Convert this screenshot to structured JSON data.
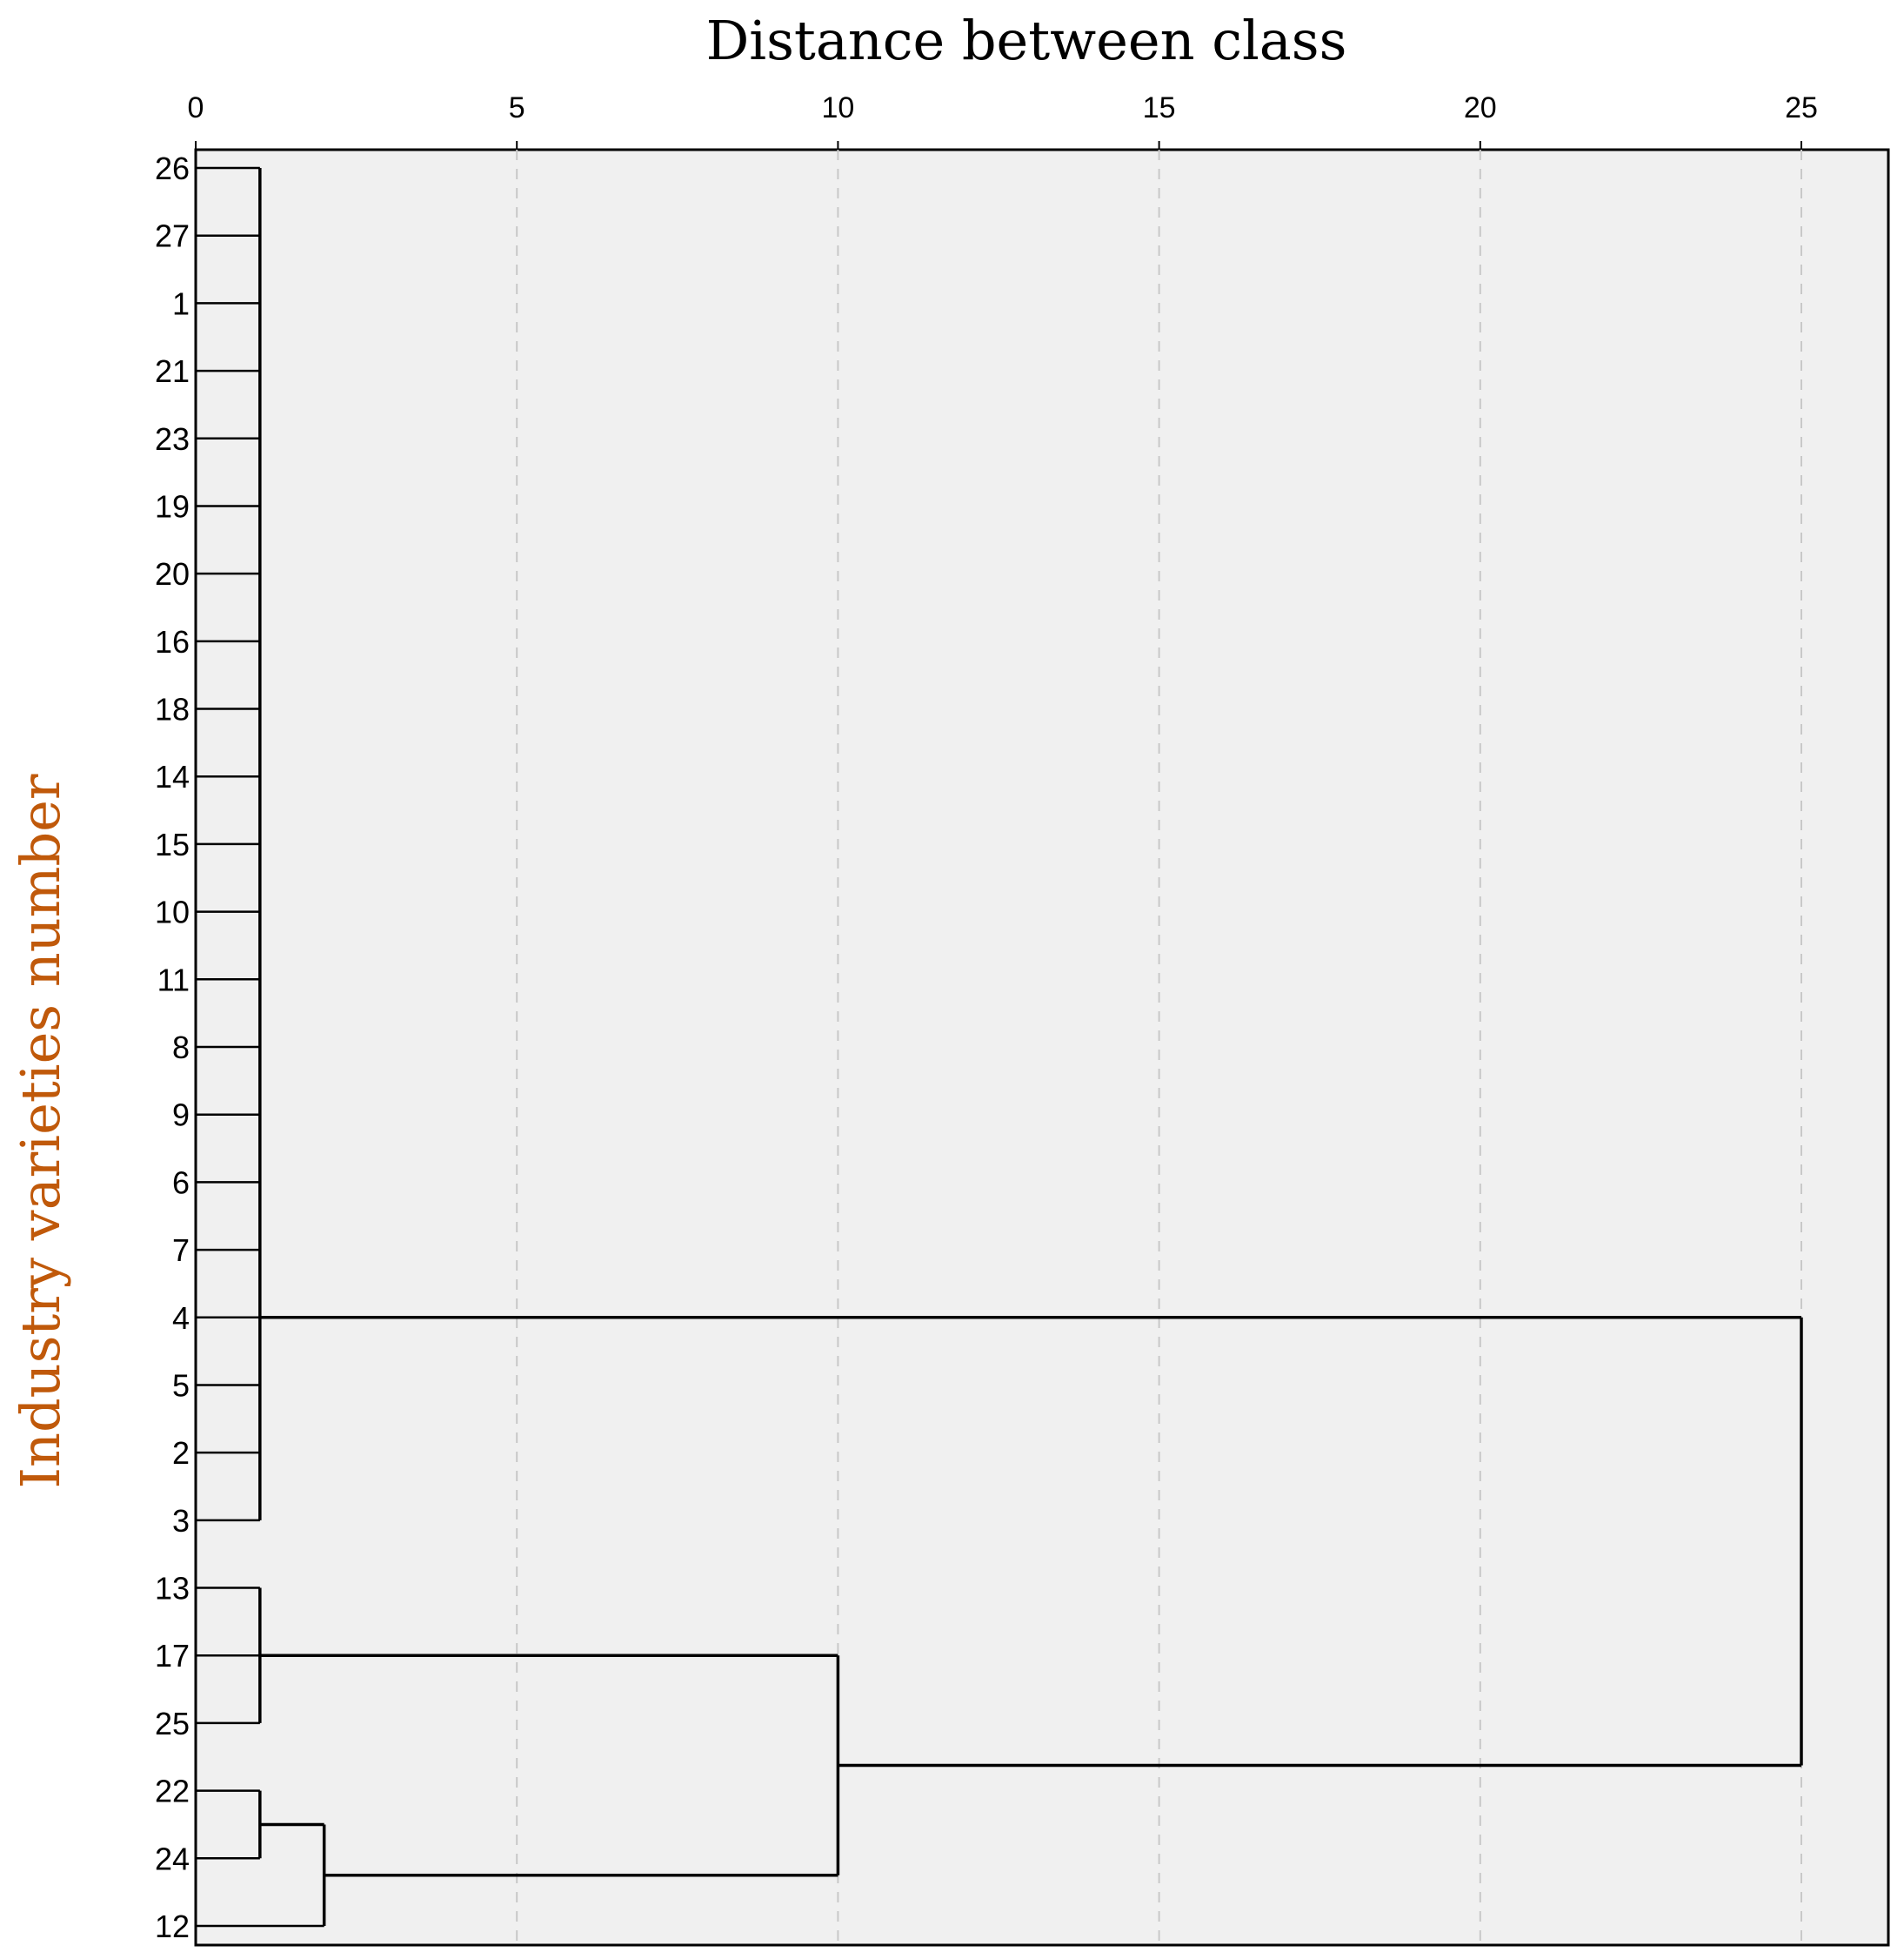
{
  "chart_data": {
    "type": "dendrogram",
    "title": "Distance between class",
    "ylabel": "Industry varieties number",
    "xlim": [
      0,
      25
    ],
    "x_ticks": [
      "0",
      "5",
      "10",
      "15",
      "20",
      "25"
    ],
    "grid": true,
    "leaf_order": [
      "26",
      "27",
      "1",
      "21",
      "23",
      "19",
      "20",
      "16",
      "18",
      "14",
      "15",
      "10",
      "11",
      "8",
      "9",
      "6",
      "7",
      "4",
      "5",
      "2",
      "3",
      "13",
      "17",
      "25",
      "22",
      "24",
      "12"
    ],
    "merges": [
      {
        "leaves": [
          "26",
          "27",
          "1",
          "21",
          "23",
          "19",
          "20",
          "16",
          "18",
          "14",
          "15",
          "10",
          "11",
          "8",
          "9",
          "6",
          "7",
          "4",
          "5",
          "2",
          "3"
        ],
        "distance": 1
      },
      {
        "leaves": [
          "13",
          "17",
          "25"
        ],
        "distance": 1
      },
      {
        "leaves": [
          "22",
          "24"
        ],
        "distance": 1
      },
      {
        "leaves": [
          "22",
          "24",
          "12"
        ],
        "distance": 2
      },
      {
        "leaves": [
          "13",
          "17",
          "25",
          "22",
          "24",
          "12"
        ],
        "distance": 10
      },
      {
        "leaves": [
          "all"
        ],
        "distance": 25
      }
    ],
    "colors": {
      "title": "#000000",
      "ylabel": "#c0590a",
      "background": "#f0f0f0",
      "lines": "#000000",
      "grid": "#c8c8c8"
    }
  }
}
